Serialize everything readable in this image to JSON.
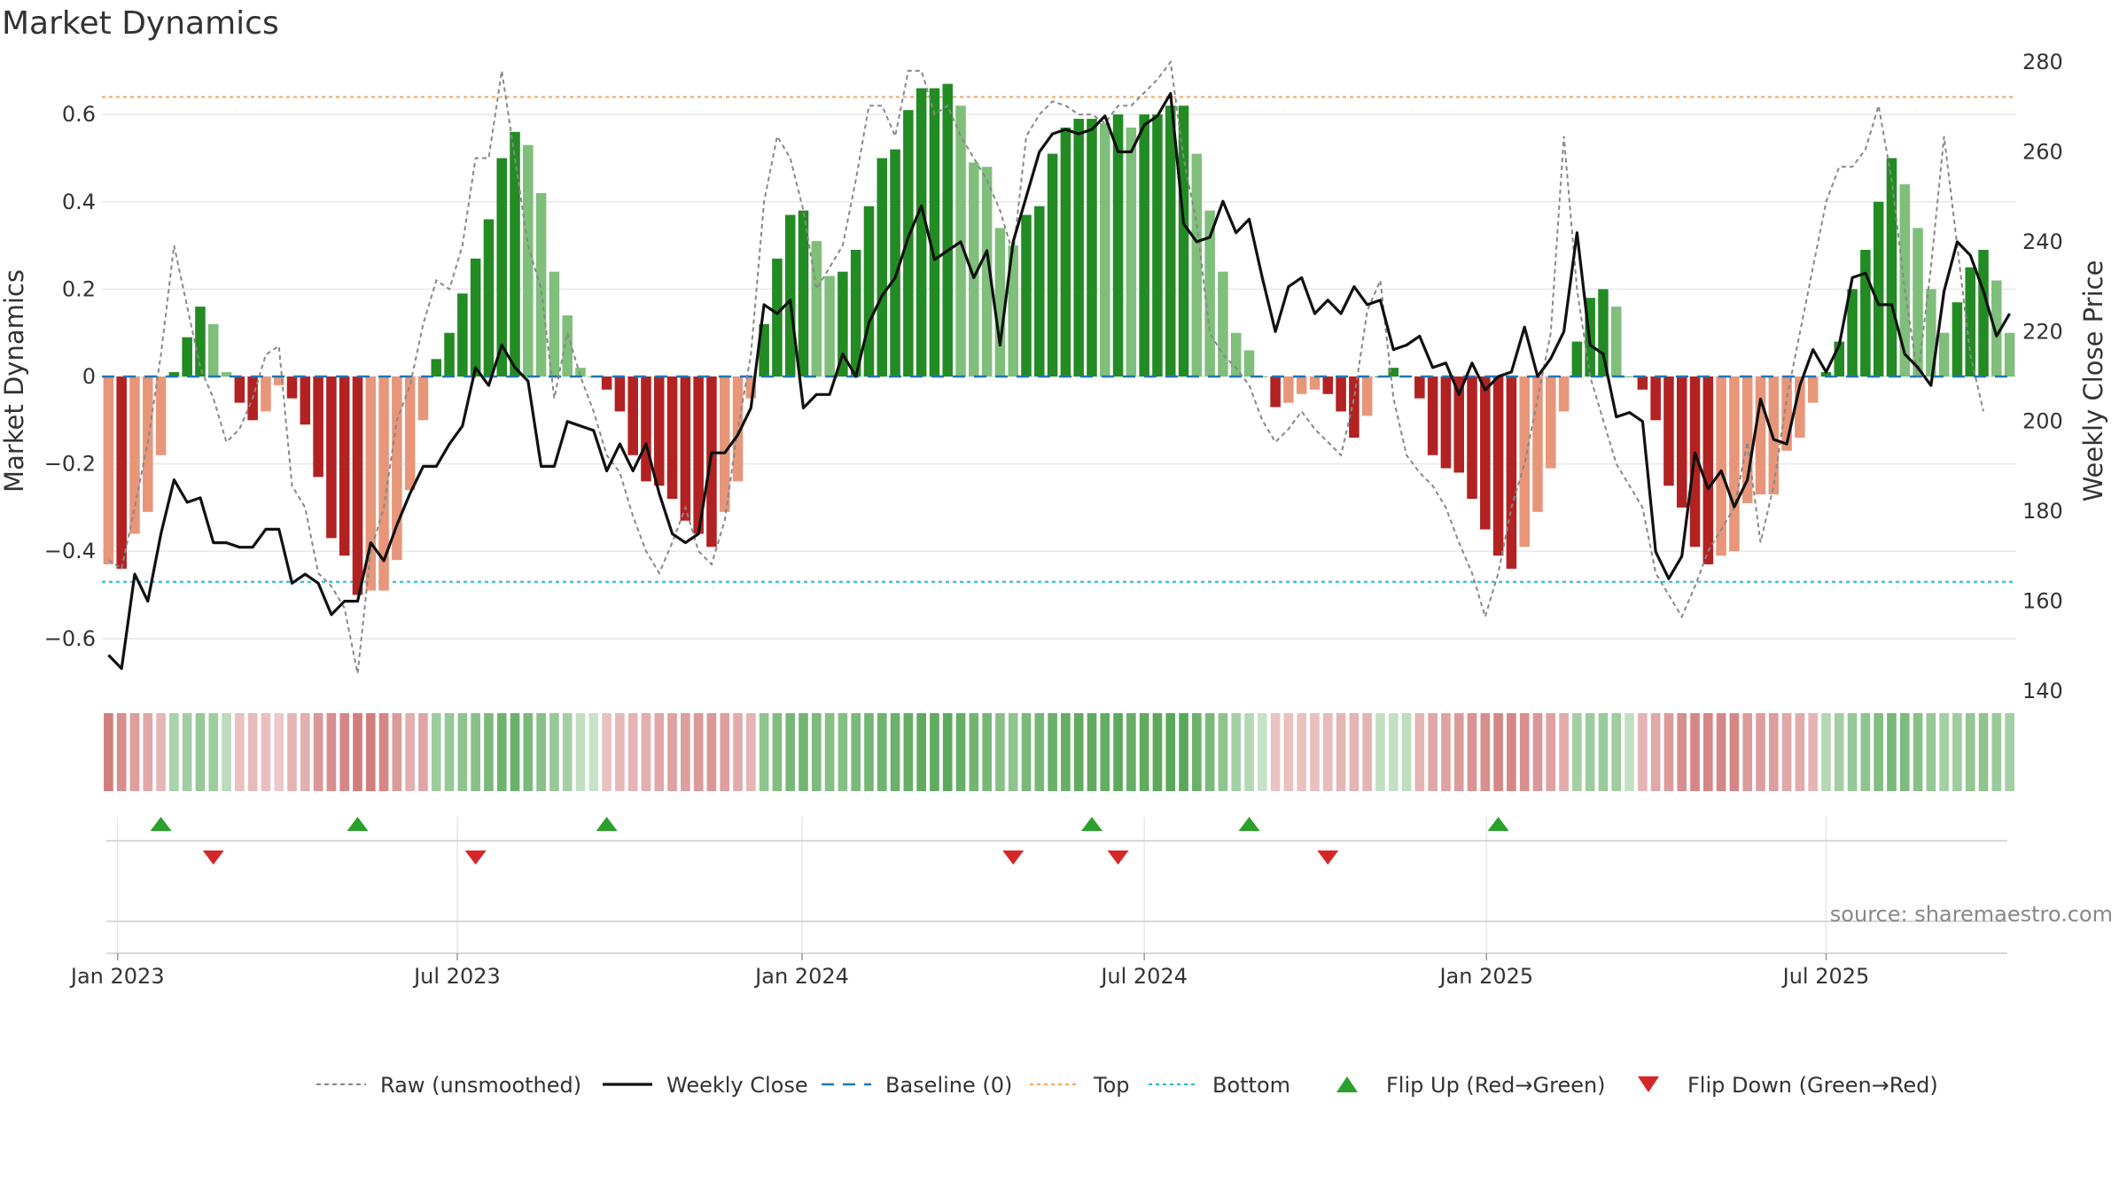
{
  "chart_data": {
    "type": "bar",
    "title": "Market Dynamics",
    "ylabel_left": "Market Dynamics",
    "ylabel_right": "Weekly Close Price",
    "left_ticks": [
      "0.6",
      "0.4",
      "0.2",
      "0",
      "−0.2",
      "−0.4",
      "−0.6"
    ],
    "left_tick_values": [
      0.6,
      0.4,
      0.2,
      0,
      -0.2,
      -0.4,
      -0.6
    ],
    "right_ticks": [
      "280",
      "260",
      "240",
      "220",
      "200",
      "180",
      "160",
      "140"
    ],
    "right_tick_values": [
      280,
      260,
      240,
      220,
      200,
      180,
      160,
      140
    ],
    "x_ticks": [
      "Jan 2023",
      "Jul 2023",
      "Jan 2024",
      "Jul 2024",
      "Jan 2025",
      "Jul 2025"
    ],
    "x_tick_weeks": [
      0.7,
      26.6,
      52.9,
      79.0,
      105.1,
      131.0
    ],
    "ylim_left": [
      -0.72,
      0.72
    ],
    "ylim_right": [
      140,
      280
    ],
    "top_level": 0.64,
    "bottom_level": -0.47,
    "values": [
      -0.43,
      -0.44,
      -0.36,
      -0.31,
      -0.18,
      0.01,
      0.09,
      0.16,
      0.12,
      0.01,
      -0.06,
      -0.1,
      -0.08,
      -0.02,
      -0.05,
      -0.11,
      -0.23,
      -0.37,
      -0.41,
      -0.5,
      -0.49,
      -0.49,
      -0.42,
      -0.26,
      -0.1,
      0.04,
      0.1,
      0.19,
      0.27,
      0.36,
      0.5,
      0.56,
      0.53,
      0.42,
      0.24,
      0.14,
      0.02,
      0,
      -0.03,
      -0.08,
      -0.18,
      -0.24,
      -0.25,
      -0.28,
      -0.33,
      -0.36,
      -0.39,
      -0.31,
      -0.24,
      -0.05,
      0.12,
      0.27,
      0.37,
      0.38,
      0.31,
      0.23,
      0.24,
      0.29,
      0.39,
      0.5,
      0.52,
      0.61,
      0.66,
      0.66,
      0.67,
      0.62,
      0.49,
      0.48,
      0.34,
      0.3,
      0.37,
      0.39,
      0.51,
      0.57,
      0.59,
      0.59,
      0.58,
      0.6,
      0.57,
      0.6,
      0.6,
      0.62,
      0.62,
      0.51,
      0.38,
      0.24,
      0.1,
      0.06,
      0,
      -0.07,
      -0.06,
      -0.04,
      -0.03,
      -0.04,
      -0.08,
      -0.14,
      -0.09,
      0,
      0.02,
      0,
      -0.05,
      -0.18,
      -0.21,
      -0.22,
      -0.28,
      -0.35,
      -0.41,
      -0.44,
      -0.39,
      -0.31,
      -0.21,
      -0.08,
      0.08,
      0.18,
      0.2,
      0.16,
      0,
      -0.03,
      -0.1,
      -0.25,
      -0.3,
      -0.39,
      -0.43,
      -0.41,
      -0.4,
      -0.29,
      -0.27,
      -0.27,
      -0.17,
      -0.14,
      -0.06,
      0.01,
      0.08,
      0.2,
      0.29,
      0.4,
      0.5,
      0.44,
      0.34,
      0.2,
      0.1,
      0.17,
      0.25,
      0.29,
      0.22,
      0.1
    ],
    "raw": [
      -0.42,
      -0.44,
      -0.3,
      -0.15,
      0.05,
      0.3,
      0.16,
      0.02,
      -0.05,
      -0.15,
      -0.12,
      -0.05,
      0.05,
      0.07,
      -0.25,
      -0.3,
      -0.45,
      -0.48,
      -0.53,
      -0.68,
      -0.4,
      -0.3,
      -0.1,
      -0.02,
      0.12,
      0.22,
      0.2,
      0.3,
      0.5,
      0.5,
      0.7,
      0.5,
      0.3,
      0.2,
      -0.05,
      0.1,
      0,
      -0.08,
      -0.18,
      -0.22,
      -0.32,
      -0.4,
      -0.45,
      -0.38,
      -0.3,
      -0.4,
      -0.43,
      -0.33,
      -0.12,
      0.05,
      0.4,
      0.55,
      0.5,
      0.38,
      0.2,
      0.25,
      0.3,
      0.45,
      0.62,
      0.62,
      0.55,
      0.7,
      0.7,
      0.6,
      0.62,
      0.55,
      0.5,
      0.45,
      0.38,
      0.28,
      0.55,
      0.6,
      0.63,
      0.62,
      0.6,
      0.6,
      0.58,
      0.62,
      0.62,
      0.65,
      0.68,
      0.72,
      0.5,
      0.35,
      0.1,
      0.05,
      0.02,
      -0.02,
      -0.1,
      -0.15,
      -0.12,
      -0.08,
      -0.12,
      -0.15,
      -0.18,
      -0.05,
      0.15,
      0.22,
      -0.05,
      -0.18,
      -0.22,
      -0.25,
      -0.3,
      -0.38,
      -0.45,
      -0.55,
      -0.45,
      -0.3,
      -0.2,
      -0.05,
      0.1,
      0.55,
      0.2,
      0,
      -0.1,
      -0.2,
      -0.25,
      -0.3,
      -0.45,
      -0.5,
      -0.55,
      -0.48,
      -0.4,
      -0.35,
      -0.3,
      -0.15,
      -0.38,
      -0.25,
      -0.05,
      0.1,
      0.25,
      0.4,
      0.48,
      0.48,
      0.52,
      0.62,
      0.45,
      0.2,
      0,
      0.25,
      0.55,
      0.3,
      0.05,
      -0.08
    ],
    "close": [
      148,
      145,
      166,
      160,
      175,
      187,
      182,
      183,
      173,
      173,
      172,
      172,
      176,
      176,
      164,
      166,
      164,
      157,
      160,
      160,
      173,
      169,
      177,
      184,
      190,
      190,
      195,
      199,
      212,
      208,
      217,
      212,
      209,
      190,
      190,
      200,
      199,
      198,
      189,
      195,
      189,
      195,
      184,
      175,
      173,
      175,
      193,
      193,
      197,
      203,
      226,
      224,
      227,
      203,
      206,
      206,
      215,
      210,
      222,
      228,
      232,
      241,
      248,
      236,
      238,
      240,
      232,
      238,
      217,
      240,
      250,
      260,
      264,
      265,
      264,
      265,
      268,
      260,
      260,
      266,
      268,
      273,
      244,
      240,
      241,
      249,
      242,
      245,
      232,
      220,
      230,
      232,
      224,
      227,
      224,
      230,
      226,
      227,
      216,
      217,
      219,
      212,
      213,
      206,
      213,
      207,
      210,
      211,
      221,
      210,
      214,
      220,
      242,
      217,
      215,
      201,
      202,
      200,
      171,
      165,
      170,
      193,
      185,
      189,
      181,
      187,
      205,
      196,
      195,
      208,
      216,
      211,
      217,
      232,
      233,
      226,
      226,
      215,
      212,
      208,
      229,
      240,
      237,
      229,
      219,
      224
    ],
    "strip_intensity": [
      0.67,
      0.55,
      0.45,
      0.38,
      0.28,
      0.35,
      0.42,
      0.5,
      0.45,
      0.25,
      0.2,
      0.25,
      0.22,
      0.15,
      0.3,
      0.32,
      0.5,
      0.55,
      0.6,
      0.67,
      0.67,
      0.6,
      0.48,
      0.32,
      0.4,
      0.45,
      0.5,
      0.55,
      0.6,
      0.7,
      0.78,
      0.8,
      0.7,
      0.6,
      0.5,
      0.4,
      0.2,
      0.15,
      0.2,
      0.26,
      0.3,
      0.34,
      0.38,
      0.42,
      0.45,
      0.48,
      0.5,
      0.45,
      0.35,
      0.3,
      0.55,
      0.65,
      0.72,
      0.75,
      0.68,
      0.62,
      0.62,
      0.7,
      0.74,
      0.78,
      0.8,
      0.84,
      0.88,
      0.88,
      0.9,
      0.85,
      0.75,
      0.72,
      0.6,
      0.55,
      0.7,
      0.72,
      0.82,
      0.85,
      0.87,
      0.88,
      0.86,
      0.9,
      0.85,
      0.88,
      0.9,
      0.92,
      0.92,
      0.82,
      0.7,
      0.55,
      0.4,
      0.3,
      0.15,
      0.18,
      0.2,
      0.2,
      0.22,
      0.25,
      0.28,
      0.3,
      0.3,
      0.2,
      0.2,
      0.22,
      0.3,
      0.38,
      0.42,
      0.48,
      0.52,
      0.55,
      0.6,
      0.6,
      0.55,
      0.5,
      0.42,
      0.35,
      0.4,
      0.45,
      0.48,
      0.45,
      0.2,
      0.3,
      0.38,
      0.48,
      0.55,
      0.6,
      0.62,
      0.6,
      0.6,
      0.48,
      0.45,
      0.45,
      0.38,
      0.35,
      0.3,
      0.3,
      0.4,
      0.5,
      0.55,
      0.65,
      0.72,
      0.68,
      0.6,
      0.5,
      0.4,
      0.45,
      0.52,
      0.55,
      0.48,
      0.4
    ],
    "flip_up_weeks": [
      4,
      19,
      38,
      75,
      87,
      106
    ],
    "flip_down_weeks": [
      8,
      28,
      69,
      77,
      93
    ],
    "legend": [
      {
        "label": "Raw (unsmoothed)",
        "style": "dash-gray"
      },
      {
        "label": "Weekly Close",
        "style": "line-black"
      },
      {
        "label": "Baseline (0)",
        "style": "dash-blue"
      },
      {
        "label": "Top",
        "style": "dot-orange"
      },
      {
        "label": "Bottom",
        "style": "dot-cyan"
      },
      {
        "label": "Flip Up (Red→Green)",
        "style": "tri-up"
      },
      {
        "label": "Flip Down (Green→Red)",
        "style": "tri-down"
      }
    ],
    "colors": {
      "green_strong": "#238b23",
      "green_light": "#7fbf7b",
      "red_strong": "#b22222",
      "red_light": "#e8967a",
      "baseline": "#1f77b4",
      "top_line": "#f4a460",
      "bottom_line": "#17becf",
      "flip_up": "#2ca02c",
      "flip_down": "#d62728"
    },
    "source": "source: sharemaestro.com"
  }
}
